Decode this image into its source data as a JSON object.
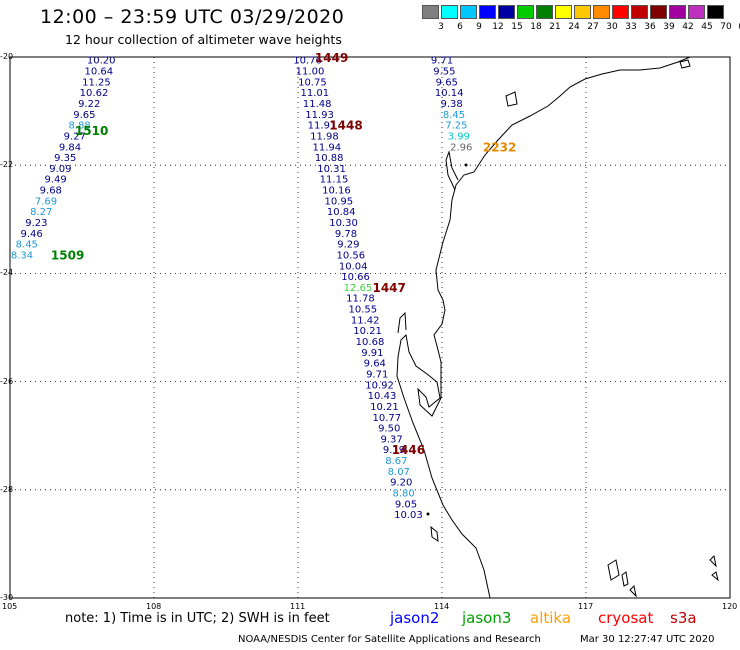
{
  "header": {
    "title": "12:00 – 23:59 UTC 03/29/2020",
    "subtitle": "12 hour collection of altimeter wave heights"
  },
  "scale": {
    "colors": [
      "#808080",
      "#00ffff",
      "#00c8ff",
      "#0000ff",
      "#0000a0",
      "#00cc00",
      "#008000",
      "#ffff00",
      "#ffc800",
      "#ff8c00",
      "#ff0000",
      "#c00000",
      "#800000",
      "#a000a0",
      "#c030c0",
      "#000000"
    ],
    "labels": [
      "3",
      "6",
      "9",
      "12",
      "15",
      "18",
      "21",
      "24",
      "27",
      "30",
      "33",
      "36",
      "39",
      "42",
      "45",
      "70",
      "(ft)"
    ]
  },
  "axes": {
    "lon_labels": [
      "105",
      "108",
      "111",
      "114",
      "117",
      "120"
    ],
    "lat_labels": [
      "-20",
      "-22",
      "-24",
      "-26",
      "-28",
      "-30"
    ]
  },
  "map_data": {
    "lon_range": [
      105,
      120
    ],
    "lat_range": [
      -30,
      -20
    ],
    "colors": {
      "dark_blue": "#00008b",
      "light_blue": "#1e9bd8",
      "cyan": "#00c8c8",
      "green": "#3ccd3c",
      "gray": "#666666",
      "dark_red": "#800000",
      "dark_green": "#008000",
      "orange": "#e88a00"
    },
    "tracks": [
      {
        "values": [
          {
            "v": "10.20",
            "c": "dark_blue",
            "lon": 106.9,
            "lat": -20.05
          },
          {
            "v": "10.64",
            "c": "dark_blue",
            "lon": 106.85,
            "lat": -20.25
          },
          {
            "v": "11.25",
            "c": "dark_blue",
            "lon": 106.8,
            "lat": -20.45
          },
          {
            "v": "10.62",
            "c": "dark_blue",
            "lon": 106.75,
            "lat": -20.65
          },
          {
            "v": "9.22",
            "c": "dark_blue",
            "lon": 106.65,
            "lat": -20.85
          },
          {
            "v": "9.65",
            "c": "dark_blue",
            "lon": 106.55,
            "lat": -21.05
          },
          {
            "v": "8.88",
            "c": "light_blue",
            "lon": 106.45,
            "lat": -21.25
          },
          {
            "v": "9.27",
            "c": "dark_blue",
            "lon": 106.35,
            "lat": -21.45
          },
          {
            "v": "9.84",
            "c": "dark_blue",
            "lon": 106.25,
            "lat": -21.65
          },
          {
            "v": "9.35",
            "c": "dark_blue",
            "lon": 106.15,
            "lat": -21.85
          },
          {
            "v": "9.09",
            "c": "dark_blue",
            "lon": 106.05,
            "lat": -22.05
          },
          {
            "v": "9.49",
            "c": "dark_blue",
            "lon": 105.95,
            "lat": -22.25
          },
          {
            "v": "9.68",
            "c": "dark_blue",
            "lon": 105.85,
            "lat": -22.45
          },
          {
            "v": "7.69",
            "c": "light_blue",
            "lon": 105.75,
            "lat": -22.65
          },
          {
            "v": "8.27",
            "c": "light_blue",
            "lon": 105.65,
            "lat": -22.85
          },
          {
            "v": "9.23",
            "c": "dark_blue",
            "lon": 105.55,
            "lat": -23.05
          },
          {
            "v": "9.46",
            "c": "dark_blue",
            "lon": 105.45,
            "lat": -23.25
          },
          {
            "v": "8.45",
            "c": "light_blue",
            "lon": 105.35,
            "lat": -23.45
          },
          {
            "v": "8.34",
            "c": "light_blue",
            "lon": 105.25,
            "lat": -23.65
          }
        ]
      },
      {
        "values": [
          {
            "v": "10.76",
            "c": "dark_blue",
            "lon": 111.2,
            "lat": -20.05
          },
          {
            "v": "11.00",
            "c": "dark_blue",
            "lon": 111.25,
            "lat": -20.25
          },
          {
            "v": "10.75",
            "c": "dark_blue",
            "lon": 111.3,
            "lat": -20.45
          },
          {
            "v": "11.01",
            "c": "dark_blue",
            "lon": 111.35,
            "lat": -20.65
          },
          {
            "v": "11.48",
            "c": "dark_blue",
            "lon": 111.4,
            "lat": -20.85
          },
          {
            "v": "11.93",
            "c": "dark_blue",
            "lon": 111.45,
            "lat": -21.05
          },
          {
            "v": "11.91",
            "c": "dark_blue",
            "lon": 111.5,
            "lat": -21.25
          },
          {
            "v": "11.98",
            "c": "dark_blue",
            "lon": 111.55,
            "lat": -21.45
          },
          {
            "v": "11.94",
            "c": "dark_blue",
            "lon": 111.6,
            "lat": -21.65
          },
          {
            "v": "10.88",
            "c": "dark_blue",
            "lon": 111.65,
            "lat": -21.85
          },
          {
            "v": "10.31",
            "c": "dark_blue",
            "lon": 111.7,
            "lat": -22.05
          },
          {
            "v": "11.15",
            "c": "dark_blue",
            "lon": 111.75,
            "lat": -22.25
          },
          {
            "v": "10.16",
            "c": "dark_blue",
            "lon": 111.8,
            "lat": -22.45
          },
          {
            "v": "10.95",
            "c": "dark_blue",
            "lon": 111.85,
            "lat": -22.65
          },
          {
            "v": "10.84",
            "c": "dark_blue",
            "lon": 111.9,
            "lat": -22.85
          },
          {
            "v": "10.30",
            "c": "dark_blue",
            "lon": 111.95,
            "lat": -23.05
          },
          {
            "v": "9.78",
            "c": "dark_blue",
            "lon": 112.0,
            "lat": -23.25
          },
          {
            "v": "9.29",
            "c": "dark_blue",
            "lon": 112.05,
            "lat": -23.45
          },
          {
            "v": "10.56",
            "c": "dark_blue",
            "lon": 112.1,
            "lat": -23.65
          },
          {
            "v": "10.04",
            "c": "dark_blue",
            "lon": 112.15,
            "lat": -23.85
          },
          {
            "v": "10.66",
            "c": "dark_blue",
            "lon": 112.2,
            "lat": -24.05
          },
          {
            "v": "12.65",
            "c": "green",
            "lon": 112.25,
            "lat": -24.25
          },
          {
            "v": "11.78",
            "c": "dark_blue",
            "lon": 112.3,
            "lat": -24.45
          },
          {
            "v": "10.55",
            "c": "dark_blue",
            "lon": 112.35,
            "lat": -24.65
          },
          {
            "v": "11.42",
            "c": "dark_blue",
            "lon": 112.4,
            "lat": -24.85
          },
          {
            "v": "10.21",
            "c": "dark_blue",
            "lon": 112.45,
            "lat": -25.05
          },
          {
            "v": "10.68",
            "c": "dark_blue",
            "lon": 112.5,
            "lat": -25.25
          },
          {
            "v": "9.91",
            "c": "dark_blue",
            "lon": 112.55,
            "lat": -25.45
          },
          {
            "v": "9.64",
            "c": "dark_blue",
            "lon": 112.6,
            "lat": -25.65
          },
          {
            "v": "9.71",
            "c": "dark_blue",
            "lon": 112.65,
            "lat": -25.85
          },
          {
            "v": "10.92",
            "c": "dark_blue",
            "lon": 112.7,
            "lat": -26.05
          },
          {
            "v": "10.43",
            "c": "dark_blue",
            "lon": 112.75,
            "lat": -26.25
          },
          {
            "v": "10.21",
            "c": "dark_blue",
            "lon": 112.8,
            "lat": -26.45
          },
          {
            "v": "10.77",
            "c": "dark_blue",
            "lon": 112.85,
            "lat": -26.65
          },
          {
            "v": "9.50",
            "c": "dark_blue",
            "lon": 112.9,
            "lat": -26.85
          },
          {
            "v": "9.37",
            "c": "dark_blue",
            "lon": 112.95,
            "lat": -27.05
          },
          {
            "v": "9.19",
            "c": "dark_blue",
            "lon": 113.0,
            "lat": -27.25
          },
          {
            "v": "8.67",
            "c": "light_blue",
            "lon": 113.05,
            "lat": -27.45
          },
          {
            "v": "8.07",
            "c": "light_blue",
            "lon": 113.1,
            "lat": -27.65
          },
          {
            "v": "9.20",
            "c": "dark_blue",
            "lon": 113.15,
            "lat": -27.85
          },
          {
            "v": "8.80",
            "c": "light_blue",
            "lon": 113.2,
            "lat": -28.05
          },
          {
            "v": "9.05",
            "c": "dark_blue",
            "lon": 113.25,
            "lat": -28.25
          },
          {
            "v": "10.03",
            "c": "dark_blue",
            "lon": 113.3,
            "lat": -28.45
          }
        ]
      },
      {
        "values": [
          {
            "v": "9.71",
            "c": "dark_blue",
            "lon": 114.0,
            "lat": -20.05
          },
          {
            "v": "9.55",
            "c": "dark_blue",
            "lon": 114.05,
            "lat": -20.25
          },
          {
            "v": "9.65",
            "c": "dark_blue",
            "lon": 114.1,
            "lat": -20.45
          },
          {
            "v": "10.14",
            "c": "dark_blue",
            "lon": 114.15,
            "lat": -20.65
          },
          {
            "v": "9.38",
            "c": "dark_blue",
            "lon": 114.2,
            "lat": -20.85
          },
          {
            "v": "8.45",
            "c": "light_blue",
            "lon": 114.25,
            "lat": -21.05
          },
          {
            "v": "7.25",
            "c": "light_blue",
            "lon": 114.3,
            "lat": -21.25
          },
          {
            "v": "3.99",
            "c": "cyan",
            "lon": 114.35,
            "lat": -21.45
          },
          {
            "v": "2.96",
            "c": "gray",
            "lon": 114.4,
            "lat": -21.65
          }
        ]
      }
    ],
    "time_labels": [
      {
        "t": "1449",
        "c": "dark_red",
        "lon": 111.7,
        "lat": -20.0
      },
      {
        "t": "1448",
        "c": "dark_red",
        "lon": 112.0,
        "lat": -21.25
      },
      {
        "t": "1447",
        "c": "dark_red",
        "lon": 112.9,
        "lat": -24.25
      },
      {
        "t": "1446",
        "c": "dark_red",
        "lon": 113.3,
        "lat": -27.25
      },
      {
        "t": "1510",
        "c": "dark_green",
        "lon": 106.7,
        "lat": -21.35
      },
      {
        "t": "1509",
        "c": "dark_green",
        "lon": 106.2,
        "lat": -23.65
      },
      {
        "t": "2232",
        "c": "orange",
        "lon": 115.2,
        "lat": -21.65
      }
    ]
  },
  "footer": {
    "note": "note:  1) Time is in UTC;  2) SWH is in feet",
    "legend": [
      {
        "label": "jason2",
        "color": "#0000ff"
      },
      {
        "label": "jason3",
        "color": "#00a000"
      },
      {
        "label": "altika",
        "color": "#ffa000"
      },
      {
        "label": "cryosat",
        "color": "#ff0000"
      },
      {
        "label": "s3a",
        "color": "#c00000"
      }
    ],
    "credit": "NOAA/NESDIS Center for Satellite Applications and Research",
    "timestamp": "Mar 30 12:27:47 UTC 2020"
  }
}
